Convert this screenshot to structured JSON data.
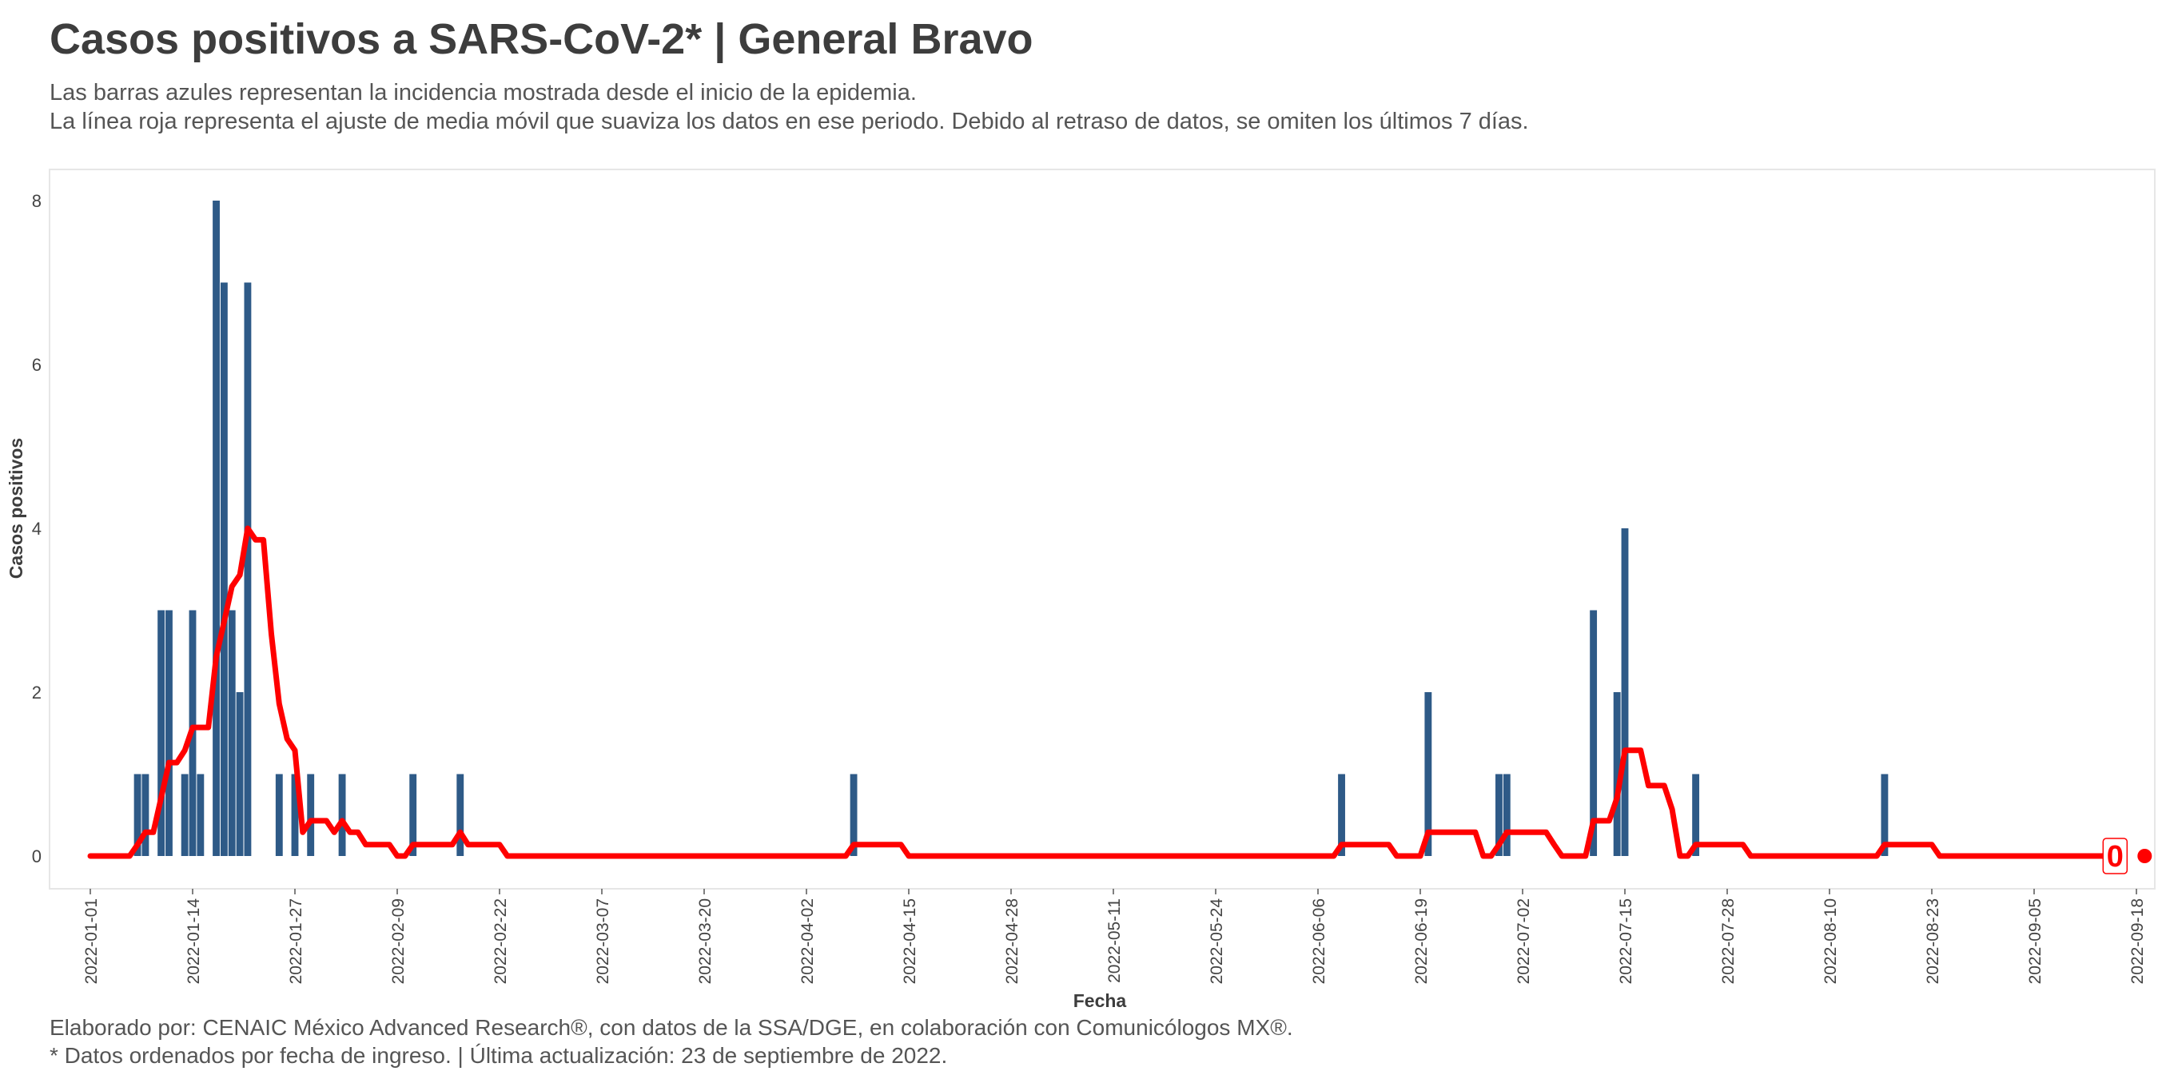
{
  "header": {
    "title": "Casos positivos a SARS-CoV-2* | General Bravo",
    "subtitle_line1": "Las barras azules representan la incidencia mostrada desde el inicio de la epidemia.",
    "subtitle_line2": "La línea roja representa el ajuste de media móvil que suaviza los datos en ese periodo. Debido al retraso de datos, se omiten los últimos 7 días."
  },
  "footer": {
    "caption_line1": "Elaborado por: CENAIC México Advanced Research®, con datos de la SSA/DGE, en colaboración con Comunicólogos MX®.",
    "caption_line2": "* Datos ordenados por fecha de ingreso. | Última actualización: 23 de septiembre de 2022."
  },
  "colors": {
    "bars": "#2e5a87",
    "line": "#ff0000",
    "panel_border": "#e6e6e6",
    "text": "#3d3d3d"
  },
  "chart_data": {
    "type": "bar",
    "xlabel": "Fecha",
    "ylabel": "Casos positivos",
    "ylim": [
      0,
      8
    ],
    "yticks": [
      0,
      2,
      4,
      6,
      8
    ],
    "xlim": [
      "2022-01-01",
      "2022-09-18"
    ],
    "xticks": [
      "2022-01-01",
      "2022-01-14",
      "2022-01-27",
      "2022-02-09",
      "2022-02-22",
      "2022-03-07",
      "2022-03-20",
      "2022-04-02",
      "2022-04-15",
      "2022-04-28",
      "2022-05-11",
      "2022-05-24",
      "2022-06-06",
      "2022-06-19",
      "2022-07-02",
      "2022-07-15",
      "2022-07-28",
      "2022-08-10",
      "2022-08-23",
      "2022-09-05",
      "2022-09-18"
    ],
    "grid": false,
    "end_label": "0",
    "series": [
      {
        "name": "",
        "type": "bar",
        "points": [
          {
            "date": "2022-01-07",
            "value": 1
          },
          {
            "date": "2022-01-08",
            "value": 1
          },
          {
            "date": "2022-01-10",
            "value": 3
          },
          {
            "date": "2022-01-11",
            "value": 3
          },
          {
            "date": "2022-01-13",
            "value": 1
          },
          {
            "date": "2022-01-14",
            "value": 3
          },
          {
            "date": "2022-01-15",
            "value": 1
          },
          {
            "date": "2022-01-17",
            "value": 8
          },
          {
            "date": "2022-01-18",
            "value": 7
          },
          {
            "date": "2022-01-19",
            "value": 3
          },
          {
            "date": "2022-01-20",
            "value": 2
          },
          {
            "date": "2022-01-21",
            "value": 7
          },
          {
            "date": "2022-01-25",
            "value": 1
          },
          {
            "date": "2022-01-27",
            "value": 1
          },
          {
            "date": "2022-01-29",
            "value": 1
          },
          {
            "date": "2022-02-02",
            "value": 1
          },
          {
            "date": "2022-02-11",
            "value": 1
          },
          {
            "date": "2022-02-17",
            "value": 1
          },
          {
            "date": "2022-04-08",
            "value": 1
          },
          {
            "date": "2022-06-09",
            "value": 1
          },
          {
            "date": "2022-06-20",
            "value": 2
          },
          {
            "date": "2022-06-29",
            "value": 1
          },
          {
            "date": "2022-06-30",
            "value": 1
          },
          {
            "date": "2022-07-11",
            "value": 3
          },
          {
            "date": "2022-07-14",
            "value": 2
          },
          {
            "date": "2022-07-15",
            "value": 4
          },
          {
            "date": "2022-07-24",
            "value": 1
          },
          {
            "date": "2022-08-17",
            "value": 1
          }
        ]
      },
      {
        "name": "",
        "type": "line",
        "points": [
          {
            "date": "2022-01-01",
            "value": 0
          },
          {
            "date": "2022-01-06",
            "value": 0
          },
          {
            "date": "2022-01-07",
            "value": 0.14
          },
          {
            "date": "2022-01-08",
            "value": 0.29
          },
          {
            "date": "2022-01-09",
            "value": 0.29
          },
          {
            "date": "2022-01-10",
            "value": 0.71
          },
          {
            "date": "2022-01-11",
            "value": 1.14
          },
          {
            "date": "2022-01-12",
            "value": 1.14
          },
          {
            "date": "2022-01-13",
            "value": 1.29
          },
          {
            "date": "2022-01-14",
            "value": 1.57
          },
          {
            "date": "2022-01-15",
            "value": 1.57
          },
          {
            "date": "2022-01-16",
            "value": 1.57
          },
          {
            "date": "2022-01-17",
            "value": 2.43
          },
          {
            "date": "2022-01-18",
            "value": 2.86
          },
          {
            "date": "2022-01-19",
            "value": 3.29
          },
          {
            "date": "2022-01-20",
            "value": 3.43
          },
          {
            "date": "2022-01-21",
            "value": 4.0
          },
          {
            "date": "2022-01-22",
            "value": 3.86
          },
          {
            "date": "2022-01-23",
            "value": 3.86
          },
          {
            "date": "2022-01-24",
            "value": 2.71
          },
          {
            "date": "2022-01-25",
            "value": 1.86
          },
          {
            "date": "2022-01-26",
            "value": 1.43
          },
          {
            "date": "2022-01-27",
            "value": 1.29
          },
          {
            "date": "2022-01-28",
            "value": 0.29
          },
          {
            "date": "2022-01-29",
            "value": 0.43
          },
          {
            "date": "2022-01-31",
            "value": 0.43
          },
          {
            "date": "2022-02-01",
            "value": 0.29
          },
          {
            "date": "2022-02-02",
            "value": 0.43
          },
          {
            "date": "2022-02-03",
            "value": 0.29
          },
          {
            "date": "2022-02-04",
            "value": 0.29
          },
          {
            "date": "2022-02-05",
            "value": 0.14
          },
          {
            "date": "2022-02-08",
            "value": 0.14
          },
          {
            "date": "2022-02-09",
            "value": 0
          },
          {
            "date": "2022-02-10",
            "value": 0
          },
          {
            "date": "2022-02-11",
            "value": 0.14
          },
          {
            "date": "2022-02-16",
            "value": 0.14
          },
          {
            "date": "2022-02-17",
            "value": 0.29
          },
          {
            "date": "2022-02-18",
            "value": 0.14
          },
          {
            "date": "2022-02-22",
            "value": 0.14
          },
          {
            "date": "2022-02-23",
            "value": 0
          },
          {
            "date": "2022-04-07",
            "value": 0
          },
          {
            "date": "2022-04-08",
            "value": 0.14
          },
          {
            "date": "2022-04-14",
            "value": 0.14
          },
          {
            "date": "2022-04-15",
            "value": 0
          },
          {
            "date": "2022-06-08",
            "value": 0
          },
          {
            "date": "2022-06-09",
            "value": 0.14
          },
          {
            "date": "2022-06-15",
            "value": 0.14
          },
          {
            "date": "2022-06-16",
            "value": 0
          },
          {
            "date": "2022-06-19",
            "value": 0
          },
          {
            "date": "2022-06-20",
            "value": 0.29
          },
          {
            "date": "2022-06-26",
            "value": 0.29
          },
          {
            "date": "2022-06-27",
            "value": 0
          },
          {
            "date": "2022-06-28",
            "value": 0
          },
          {
            "date": "2022-06-29",
            "value": 0.14
          },
          {
            "date": "2022-06-30",
            "value": 0.29
          },
          {
            "date": "2022-07-05",
            "value": 0.29
          },
          {
            "date": "2022-07-06",
            "value": 0.14
          },
          {
            "date": "2022-07-07",
            "value": 0
          },
          {
            "date": "2022-07-10",
            "value": 0
          },
          {
            "date": "2022-07-11",
            "value": 0.43
          },
          {
            "date": "2022-07-13",
            "value": 0.43
          },
          {
            "date": "2022-07-14",
            "value": 0.71
          },
          {
            "date": "2022-07-15",
            "value": 1.29
          },
          {
            "date": "2022-07-17",
            "value": 1.29
          },
          {
            "date": "2022-07-18",
            "value": 0.86
          },
          {
            "date": "2022-07-20",
            "value": 0.86
          },
          {
            "date": "2022-07-21",
            "value": 0.57
          },
          {
            "date": "2022-07-22",
            "value": 0
          },
          {
            "date": "2022-07-23",
            "value": 0
          },
          {
            "date": "2022-07-24",
            "value": 0.14
          },
          {
            "date": "2022-07-30",
            "value": 0.14
          },
          {
            "date": "2022-07-31",
            "value": 0
          },
          {
            "date": "2022-08-16",
            "value": 0
          },
          {
            "date": "2022-08-17",
            "value": 0.14
          },
          {
            "date": "2022-08-23",
            "value": 0.14
          },
          {
            "date": "2022-08-24",
            "value": 0
          },
          {
            "date": "2022-09-16",
            "value": 0
          }
        ]
      }
    ]
  }
}
